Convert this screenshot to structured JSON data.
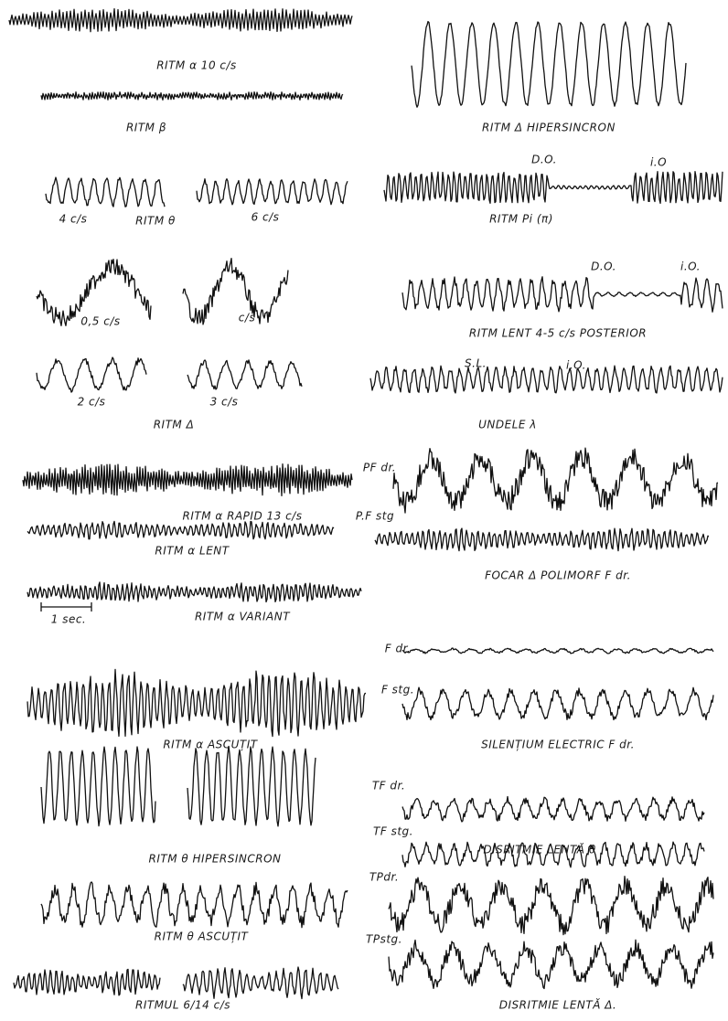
{
  "labels": [
    "RITM α 10 c/s",
    "RITM β",
    "4 c/s",
    "RITM θ",
    "6 c/s",
    "0,5 c/s",
    "c/s",
    "2 c/s",
    "3 c/s",
    "RITM Δ",
    "RITM α RAPID 13 c/s",
    "RITM α LENT",
    "1 sec.",
    "RITM α VARIANT",
    "RITM α ASCUȚIT",
    "RITM θ HIPERSINCRON",
    "RITM θ ASCUȚIT",
    "RITMUL 6/14 c/s",
    "RITM Δ HIPERSINCRON",
    "D.O.",
    "i.O",
    "RITM Pi (π)",
    "D.O.",
    "i.O.",
    "RITM LENT 4-5 c/s POSTERIOR",
    "S.L.",
    "i.O.",
    "UNDELE λ",
    "PF dr.",
    "P.F stg",
    "FOCAR Δ POLIMORF F dr.",
    "F dr.",
    "F stg.",
    "SILENȚIUM ELECTRIC F dr.",
    "TF dr.",
    "TF stg.",
    "DISRITMIE LENTĂ θ",
    "TPdr.",
    "TPstg.",
    "DISRITMIE LENTĂ Δ."
  ]
}
